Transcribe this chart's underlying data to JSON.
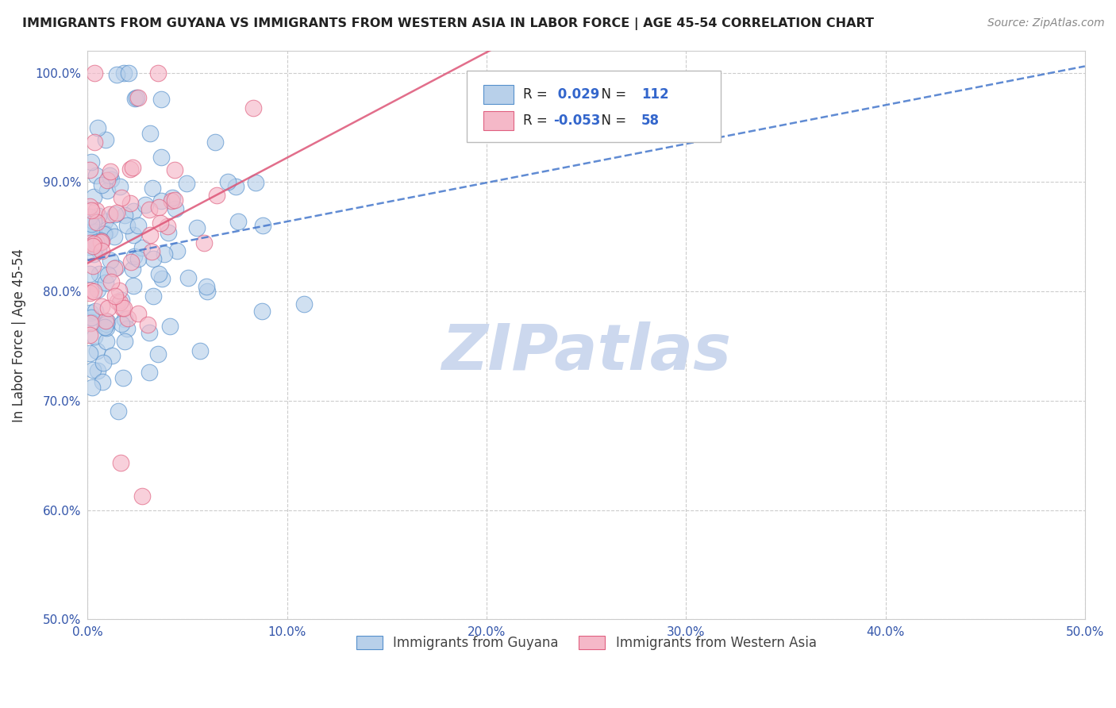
{
  "title": "IMMIGRANTS FROM GUYANA VS IMMIGRANTS FROM WESTERN ASIA IN LABOR FORCE | AGE 45-54 CORRELATION CHART",
  "source": "Source: ZipAtlas.com",
  "ylabel": "In Labor Force | Age 45-54",
  "xlim": [
    0.0,
    0.5
  ],
  "ylim": [
    0.5,
    1.02
  ],
  "xtick_labels": [
    "0.0%",
    "10.0%",
    "20.0%",
    "30.0%",
    "40.0%",
    "50.0%"
  ],
  "xtick_vals": [
    0.0,
    0.1,
    0.2,
    0.3,
    0.4,
    0.5
  ],
  "ytick_labels": [
    "50.0%",
    "60.0%",
    "70.0%",
    "80.0%",
    "90.0%",
    "100.0%"
  ],
  "ytick_vals": [
    0.5,
    0.6,
    0.7,
    0.8,
    0.9,
    1.0
  ],
  "legend1_label": "Immigrants from Guyana",
  "legend2_label": "Immigrants from Western Asia",
  "R1": 0.029,
  "N1": 112,
  "R2": -0.053,
  "N2": 58,
  "blue_fill": "#b8d0ea",
  "blue_edge": "#5590cc",
  "pink_fill": "#f5b8c8",
  "pink_edge": "#e06080",
  "blue_trend_color": "#4477cc",
  "pink_trend_color": "#dd5577",
  "title_color": "#222222",
  "tick_color": "#3355aa",
  "watermark": "ZIPatlas",
  "watermark_color": "#ccd8ee",
  "background_color": "#ffffff",
  "grid_color": "#cccccc"
}
